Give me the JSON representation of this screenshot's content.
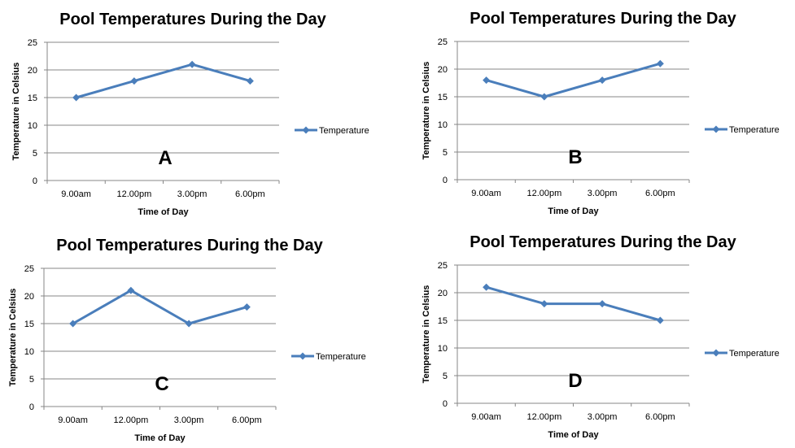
{
  "colors": {
    "series": "#4a7ebb",
    "grid": "#878787",
    "text": "#000000"
  },
  "chart_data": [
    {
      "type": "line",
      "title": "Pool Temperatures During the Day",
      "xlabel": "Time of Day",
      "ylabel": "Temperature in Celsius",
      "categories": [
        "9.00am",
        "12.00pm",
        "3.00pm",
        "6.00pm"
      ],
      "series": [
        {
          "name": "Temperature",
          "values": [
            15,
            18,
            21,
            18
          ]
        }
      ],
      "ylim": [
        0,
        25
      ],
      "yticks": [
        0,
        5,
        10,
        15,
        20,
        25
      ],
      "legend": "right",
      "annotation": "A"
    },
    {
      "type": "line",
      "title": "Pool Temperatures During the Day",
      "xlabel": "Time of Day",
      "ylabel": "Temperature in Celsius",
      "categories": [
        "9.00am",
        "12.00pm",
        "3.00pm",
        "6.00pm"
      ],
      "series": [
        {
          "name": "Temperature",
          "values": [
            18,
            15,
            18,
            21
          ]
        }
      ],
      "ylim": [
        0,
        25
      ],
      "yticks": [
        0,
        5,
        10,
        15,
        20,
        25
      ],
      "legend": "right",
      "annotation": "B"
    },
    {
      "type": "line",
      "title": "Pool Temperatures During the Day",
      "xlabel": "Time of Day",
      "ylabel": "Temperature in Celsius",
      "categories": [
        "9.00am",
        "12.00pm",
        "3.00pm",
        "6.00pm"
      ],
      "series": [
        {
          "name": "Temperature",
          "values": [
            15,
            21,
            15,
            18
          ]
        }
      ],
      "ylim": [
        0,
        25
      ],
      "yticks": [
        0,
        5,
        10,
        15,
        20,
        25
      ],
      "legend": "right",
      "annotation": "C"
    },
    {
      "type": "line",
      "title": "Pool Temperatures During the Day",
      "xlabel": "Time of Day",
      "ylabel": "Temperature in Celsius",
      "categories": [
        "9.00am",
        "12.00pm",
        "3.00pm",
        "6.00pm"
      ],
      "series": [
        {
          "name": "Temperature",
          "values": [
            21,
            18,
            18,
            15
          ]
        }
      ],
      "ylim": [
        0,
        25
      ],
      "yticks": [
        0,
        5,
        10,
        15,
        20,
        25
      ],
      "legend": "right",
      "annotation": "D"
    }
  ]
}
